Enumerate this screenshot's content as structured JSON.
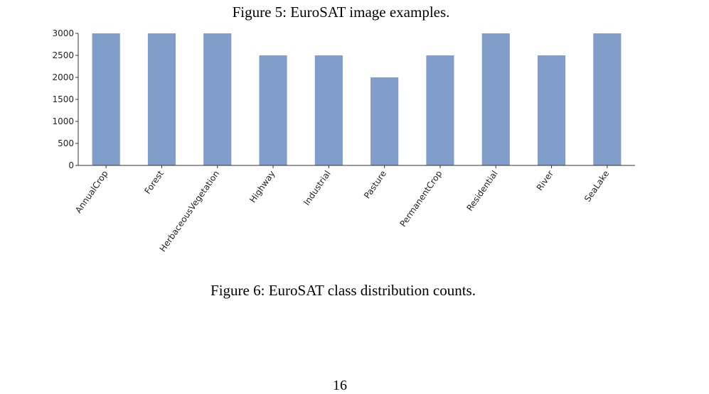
{
  "figure_top": {
    "caption": "Figure 5: EuroSAT image examples."
  },
  "figure_bottom": {
    "caption": "Figure 6: EuroSAT class distribution counts."
  },
  "page": {
    "number": "16"
  },
  "colors": {
    "bar": "#819dc9",
    "axis": "#333333"
  },
  "chart_data": {
    "type": "bar",
    "title": "",
    "xlabel": "",
    "ylabel": "",
    "categories": [
      "AnnualCrop",
      "Forest",
      "HerbaceousVegetation",
      "Highway",
      "Industrial",
      "Pasture",
      "PermanentCrop",
      "Residential",
      "River",
      "SeaLake"
    ],
    "values": [
      3000,
      3000,
      3000,
      2500,
      2500,
      2000,
      2500,
      3000,
      2500,
      3000
    ],
    "ylim": [
      0,
      3000
    ],
    "yticks": [
      0,
      500,
      1000,
      1500,
      2000,
      2500,
      3000
    ],
    "grid": false,
    "legend": "none"
  }
}
